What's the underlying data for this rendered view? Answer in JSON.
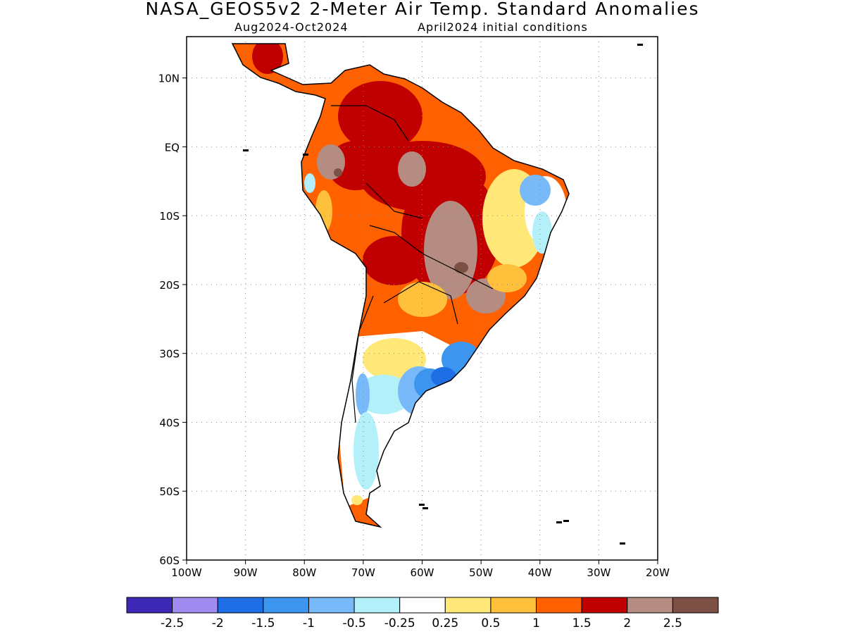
{
  "title": "NASA_GEOS5v2 2-Meter Air Temp. Standard Anomalies",
  "subtitle_left": "Aug2024-Oct2024",
  "subtitle_right": "April2024 initial conditions",
  "map": {
    "region": "South America",
    "lon_range": [
      -100,
      -20
    ],
    "lat_range": [
      -60,
      16
    ],
    "grid": "dotted",
    "x_ticks": [
      {
        "lon": -100,
        "label": "100W"
      },
      {
        "lon": -90,
        "label": "90W"
      },
      {
        "lon": -80,
        "label": "80W"
      },
      {
        "lon": -70,
        "label": "70W"
      },
      {
        "lon": -60,
        "label": "60W"
      },
      {
        "lon": -50,
        "label": "50W"
      },
      {
        "lon": -40,
        "label": "40W"
      },
      {
        "lon": -30,
        "label": "30W"
      },
      {
        "lon": -20,
        "label": "20W"
      }
    ],
    "y_ticks": [
      {
        "lat": 10,
        "label": "10N"
      },
      {
        "lat": 0,
        "label": "EQ"
      },
      {
        "lat": -10,
        "label": "10S"
      },
      {
        "lat": -20,
        "label": "20S"
      },
      {
        "lat": -30,
        "label": "30S"
      },
      {
        "lat": -40,
        "label": "40S"
      },
      {
        "lat": -50,
        "label": "50S"
      },
      {
        "lat": -60,
        "label": "60S"
      }
    ]
  },
  "colorbar": {
    "colors": [
      "#3c28b4",
      "#a08cf0",
      "#1e6ee6",
      "#3c96f0",
      "#78b9fa",
      "#b4f0fa",
      "#ffffff",
      "#ffe878",
      "#ffc03c",
      "#ff6000",
      "#c00000",
      "#b48c82",
      "#7d5046"
    ],
    "labels": [
      "-2.5",
      "-2",
      "-1.5",
      "-1",
      "-0.5",
      "-0.25",
      "0.25",
      "0.5",
      "1",
      "1.5",
      "2",
      "2.5"
    ]
  }
}
